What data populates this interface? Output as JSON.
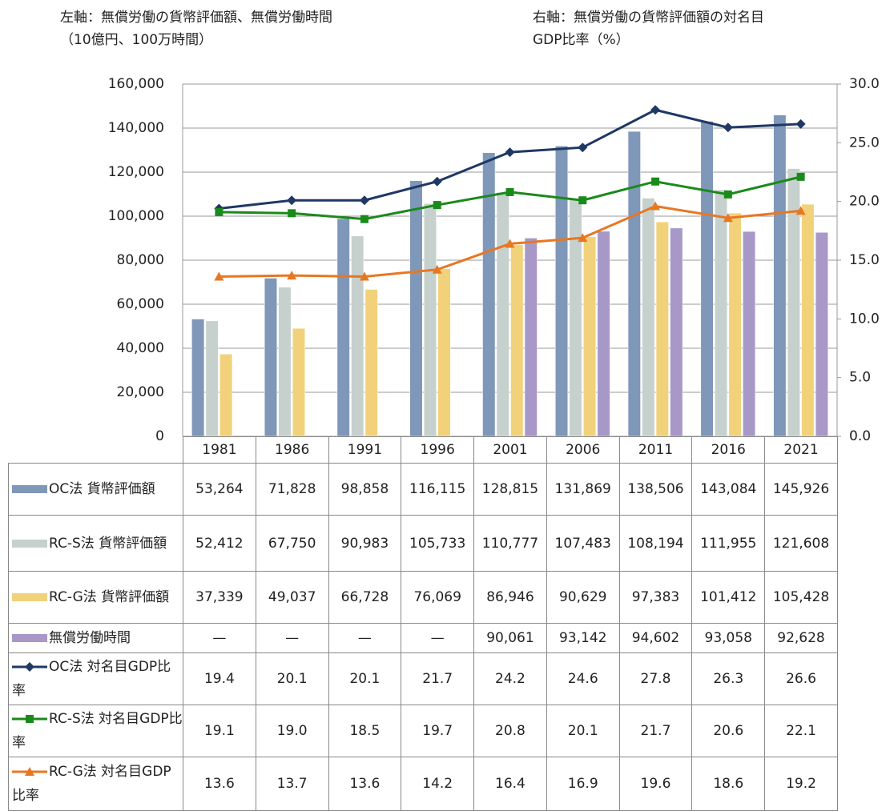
{
  "chart_data": {
    "type": "bar",
    "y_label": [
      "左軸：無償労働の貨幣評価額、無償労働時間",
      "（10億円、100万時間）"
    ],
    "y2_label": [
      "右軸：無償労働の貨幣評価額の対名目",
      "GDP比率（%）"
    ],
    "categories": [
      "1981",
      "1986",
      "1991",
      "1996",
      "2001",
      "2006",
      "2011",
      "2016",
      "2021"
    ],
    "series": [
      {
        "name": "OC法 貨幣評価額",
        "type": "bar",
        "color": "#7f97b8",
        "values": [
          53264,
          71828,
          98858,
          116115,
          128815,
          131869,
          138506,
          143084,
          145926
        ],
        "value_labels": [
          "53,264",
          "71,828",
          "98,858",
          "116,115",
          "128,815",
          "131,869",
          "138,506",
          "143,084",
          "145,926"
        ]
      },
      {
        "name": "RC-S法 貨幣評価額",
        "type": "bar",
        "color": "#c6d1cd",
        "values": [
          52412,
          67750,
          90983,
          105733,
          110777,
          107483,
          108194,
          111955,
          121608
        ],
        "value_labels": [
          "52,412",
          "67,750",
          "90,983",
          "105,733",
          "110,777",
          "107,483",
          "108,194",
          "111,955",
          "121,608"
        ]
      },
      {
        "name": "RC-G法 貨幣評価額",
        "type": "bar",
        "color": "#f1d27a",
        "values": [
          37339,
          49037,
          66728,
          76069,
          86946,
          90629,
          97383,
          101412,
          105428
        ],
        "value_labels": [
          "37,339",
          "49,037",
          "66,728",
          "76,069",
          "86,946",
          "90,629",
          "97,383",
          "101,412",
          "105,428"
        ]
      },
      {
        "name": "無償労働時間",
        "type": "bar",
        "color": "#a898c8",
        "values": [
          null,
          null,
          null,
          null,
          90061,
          93142,
          94602,
          93058,
          92628
        ],
        "value_labels": [
          "—",
          "—",
          "—",
          "—",
          "90,061",
          "93,142",
          "94,602",
          "93,058",
          "92,628"
        ]
      },
      {
        "name": "OC法 対名目GDP比率",
        "type": "line",
        "axis": "y2",
        "color": "#1f3864",
        "marker": "diamond",
        "values": [
          19.4,
          20.1,
          20.1,
          21.7,
          24.2,
          24.6,
          27.8,
          26.3,
          26.6
        ],
        "value_labels": [
          "19.4",
          "20.1",
          "20.1",
          "21.7",
          "24.2",
          "24.6",
          "27.8",
          "26.3",
          "26.6"
        ]
      },
      {
        "name": "RC-S法 対名目GDP比率",
        "type": "line",
        "axis": "y2",
        "color": "#1a8a1a",
        "marker": "square",
        "values": [
          19.1,
          19.0,
          18.5,
          19.7,
          20.8,
          20.1,
          21.7,
          20.6,
          22.1
        ],
        "value_labels": [
          "19.1",
          "19.0",
          "18.5",
          "19.7",
          "20.8",
          "20.1",
          "21.7",
          "20.6",
          "22.1"
        ]
      },
      {
        "name": "RC-G法 対名目GDP比率",
        "type": "line",
        "axis": "y2",
        "color": "#e87722",
        "marker": "triangle",
        "values": [
          13.6,
          13.7,
          13.6,
          14.2,
          16.4,
          16.9,
          19.6,
          18.6,
          19.2
        ],
        "value_labels": [
          "13.6",
          "13.7",
          "13.6",
          "14.2",
          "16.4",
          "16.9",
          "19.6",
          "18.6",
          "19.2"
        ]
      }
    ],
    "ylim": [
      0,
      160000
    ],
    "yticks": [
      0,
      {
        "value": 20000,
        "label": "20,000"
      },
      {
        "value": 40000,
        "label": "40,000"
      },
      {
        "value": 60000,
        "label": "60,000"
      },
      {
        "value": 80000,
        "label": "80,000"
      },
      {
        "value": 100000,
        "label": "100,000"
      },
      {
        "value": 120000,
        "label": "120,000"
      },
      {
        "value": 140000,
        "label": "140,000"
      },
      {
        "value": 160000,
        "label": "160,000"
      }
    ],
    "y2lim": [
      0,
      30
    ],
    "y2ticks": [
      {
        "value": 0,
        "label": "0.0"
      },
      {
        "value": 5,
        "label": "5.0"
      },
      {
        "value": 10,
        "label": "10.0"
      },
      {
        "value": 15,
        "label": "15.0"
      },
      {
        "value": 20,
        "label": "20.0"
      },
      {
        "value": 25,
        "label": "25.0"
      },
      {
        "value": 30,
        "label": "30.0"
      }
    ],
    "grid": true
  }
}
